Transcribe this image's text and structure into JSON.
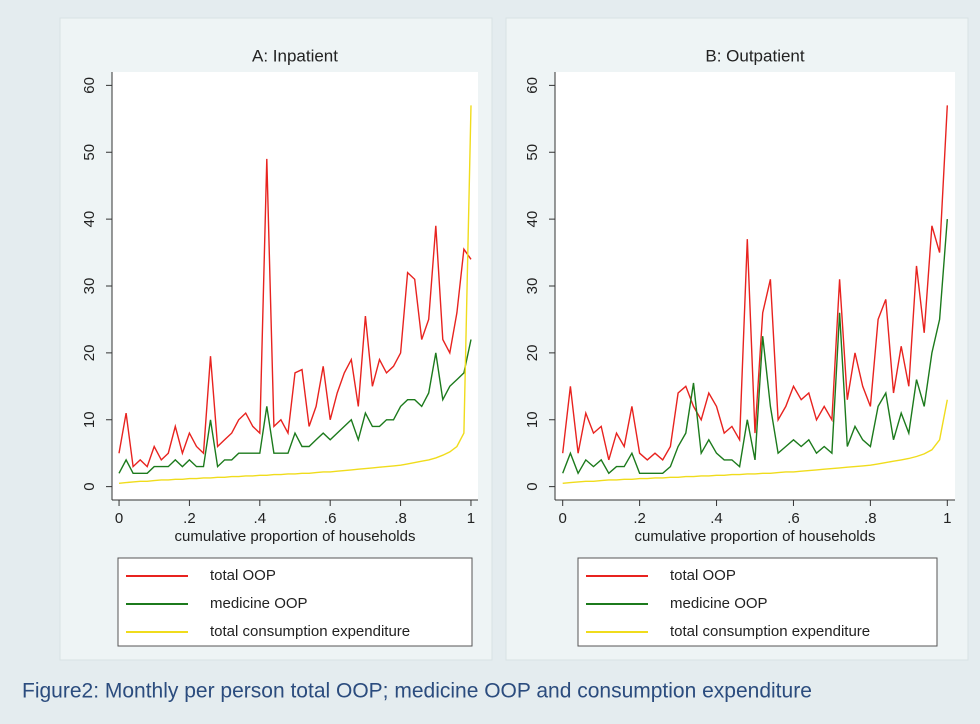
{
  "chart_data": [
    {
      "type": "line",
      "title": "A: Inpatient",
      "xlabel": "cumulative proportion of households",
      "x": [
        0,
        0.02,
        0.04,
        0.06,
        0.08,
        0.1,
        0.12,
        0.14,
        0.16,
        0.18,
        0.2,
        0.22,
        0.24,
        0.26,
        0.28,
        0.3,
        0.32,
        0.34,
        0.36,
        0.38,
        0.4,
        0.42,
        0.44,
        0.46,
        0.48,
        0.5,
        0.52,
        0.54,
        0.56,
        0.58,
        0.6,
        0.62,
        0.64,
        0.66,
        0.68,
        0.7,
        0.72,
        0.74,
        0.76,
        0.78,
        0.8,
        0.82,
        0.84,
        0.86,
        0.88,
        0.9,
        0.92,
        0.94,
        0.96,
        0.98,
        1
      ],
      "xlim": [
        -0.02,
        1.02
      ],
      "ylim": [
        -2,
        62
      ],
      "xticks": [
        0,
        {
          "value": 0.2,
          "label": ".2"
        },
        {
          "value": 0.4,
          "label": ".4"
        },
        {
          "value": 0.6,
          "label": ".6"
        },
        {
          "value": 0.8,
          "label": ".8"
        },
        1
      ],
      "yticks": [
        0,
        10,
        20,
        30,
        40,
        50,
        60
      ],
      "series": [
        {
          "name": "total OOP",
          "color": "#e8231f",
          "values": [
            5,
            11,
            3,
            4,
            3,
            6,
            4,
            5,
            9,
            5,
            8,
            6,
            5,
            19.5,
            6,
            7,
            8,
            10,
            11,
            9,
            8,
            49,
            9,
            10,
            8,
            17,
            17.5,
            9,
            12,
            18,
            10,
            14,
            17,
            19,
            12,
            25.5,
            15,
            19,
            17,
            18,
            20,
            32,
            31,
            22,
            25,
            39,
            22,
            20,
            26,
            35.5,
            34
          ]
        },
        {
          "name": "medicine OOP",
          "color": "#1c7a1c",
          "values": [
            2,
            4,
            2,
            2,
            2,
            3,
            3,
            3,
            4,
            3,
            4,
            3,
            3,
            10,
            3,
            4,
            4,
            5,
            5,
            5,
            5,
            12,
            5,
            5,
            5,
            8,
            6,
            6,
            7,
            8,
            7,
            8,
            9,
            10,
            7,
            11,
            9,
            9,
            10,
            10,
            12,
            13,
            13,
            12,
            14,
            20,
            13,
            15,
            16,
            17,
            22
          ]
        },
        {
          "name": "total consumption expenditure",
          "color": "#f0dc1c",
          "values": [
            0.5,
            0.6,
            0.7,
            0.8,
            0.8,
            0.9,
            1,
            1,
            1.1,
            1.1,
            1.2,
            1.2,
            1.3,
            1.3,
            1.4,
            1.4,
            1.5,
            1.5,
            1.6,
            1.6,
            1.7,
            1.7,
            1.8,
            1.8,
            1.9,
            1.9,
            2,
            2,
            2.1,
            2.2,
            2.2,
            2.3,
            2.4,
            2.5,
            2.6,
            2.7,
            2.8,
            2.9,
            3,
            3.1,
            3.2,
            3.4,
            3.6,
            3.8,
            4,
            4.3,
            4.7,
            5.2,
            6,
            8,
            57
          ]
        }
      ]
    },
    {
      "type": "line",
      "title": "B: Outpatient",
      "xlabel": "cumulative proportion of households",
      "x": [
        0,
        0.02,
        0.04,
        0.06,
        0.08,
        0.1,
        0.12,
        0.14,
        0.16,
        0.18,
        0.2,
        0.22,
        0.24,
        0.26,
        0.28,
        0.3,
        0.32,
        0.34,
        0.36,
        0.38,
        0.4,
        0.42,
        0.44,
        0.46,
        0.48,
        0.5,
        0.52,
        0.54,
        0.56,
        0.58,
        0.6,
        0.62,
        0.64,
        0.66,
        0.68,
        0.7,
        0.72,
        0.74,
        0.76,
        0.78,
        0.8,
        0.82,
        0.84,
        0.86,
        0.88,
        0.9,
        0.92,
        0.94,
        0.96,
        0.98,
        1
      ],
      "xlim": [
        -0.02,
        1.02
      ],
      "ylim": [
        -2,
        62
      ],
      "xticks": [
        0,
        {
          "value": 0.2,
          "label": ".2"
        },
        {
          "value": 0.4,
          "label": ".4"
        },
        {
          "value": 0.6,
          "label": ".6"
        },
        {
          "value": 0.8,
          "label": ".8"
        },
        1
      ],
      "yticks": [
        0,
        10,
        20,
        30,
        40,
        50,
        60
      ],
      "series": [
        {
          "name": "total OOP",
          "color": "#e8231f",
          "values": [
            5,
            15,
            5,
            11,
            8,
            9,
            4,
            8,
            6,
            12,
            5,
            4,
            5,
            4,
            6,
            14,
            15,
            12,
            10,
            14,
            12,
            8,
            9,
            7,
            37,
            8,
            26,
            31,
            10,
            12,
            15,
            13,
            14,
            10,
            12,
            10,
            31,
            13,
            20,
            15,
            12,
            25,
            28,
            14,
            21,
            15,
            33,
            23,
            39,
            35,
            57
          ]
        },
        {
          "name": "medicine OOP",
          "color": "#1c7a1c",
          "values": [
            2,
            5,
            2,
            4,
            3,
            4,
            2,
            3,
            3,
            5,
            2,
            2,
            2,
            2,
            3,
            6,
            8,
            15.5,
            5,
            7,
            5,
            4,
            4,
            3,
            10,
            4,
            22.5,
            12,
            5,
            6,
            7,
            6,
            7,
            5,
            6,
            5,
            26,
            6,
            9,
            7,
            6,
            12,
            14,
            7,
            11,
            8,
            16,
            12,
            20,
            25,
            40
          ]
        },
        {
          "name": "total consumption expenditure",
          "color": "#f0dc1c",
          "values": [
            0.5,
            0.6,
            0.7,
            0.8,
            0.8,
            0.9,
            1,
            1,
            1.1,
            1.1,
            1.2,
            1.2,
            1.3,
            1.3,
            1.4,
            1.4,
            1.5,
            1.5,
            1.6,
            1.6,
            1.7,
            1.7,
            1.8,
            1.8,
            1.9,
            1.9,
            2,
            2,
            2.1,
            2.2,
            2.2,
            2.3,
            2.4,
            2.5,
            2.6,
            2.7,
            2.8,
            2.9,
            3,
            3.1,
            3.2,
            3.4,
            3.6,
            3.8,
            4,
            4.2,
            4.5,
            4.9,
            5.5,
            7,
            13
          ]
        }
      ]
    }
  ],
  "caption": "Figure2: Monthly per person total OOP; medicine OOP and consumption expenditure"
}
